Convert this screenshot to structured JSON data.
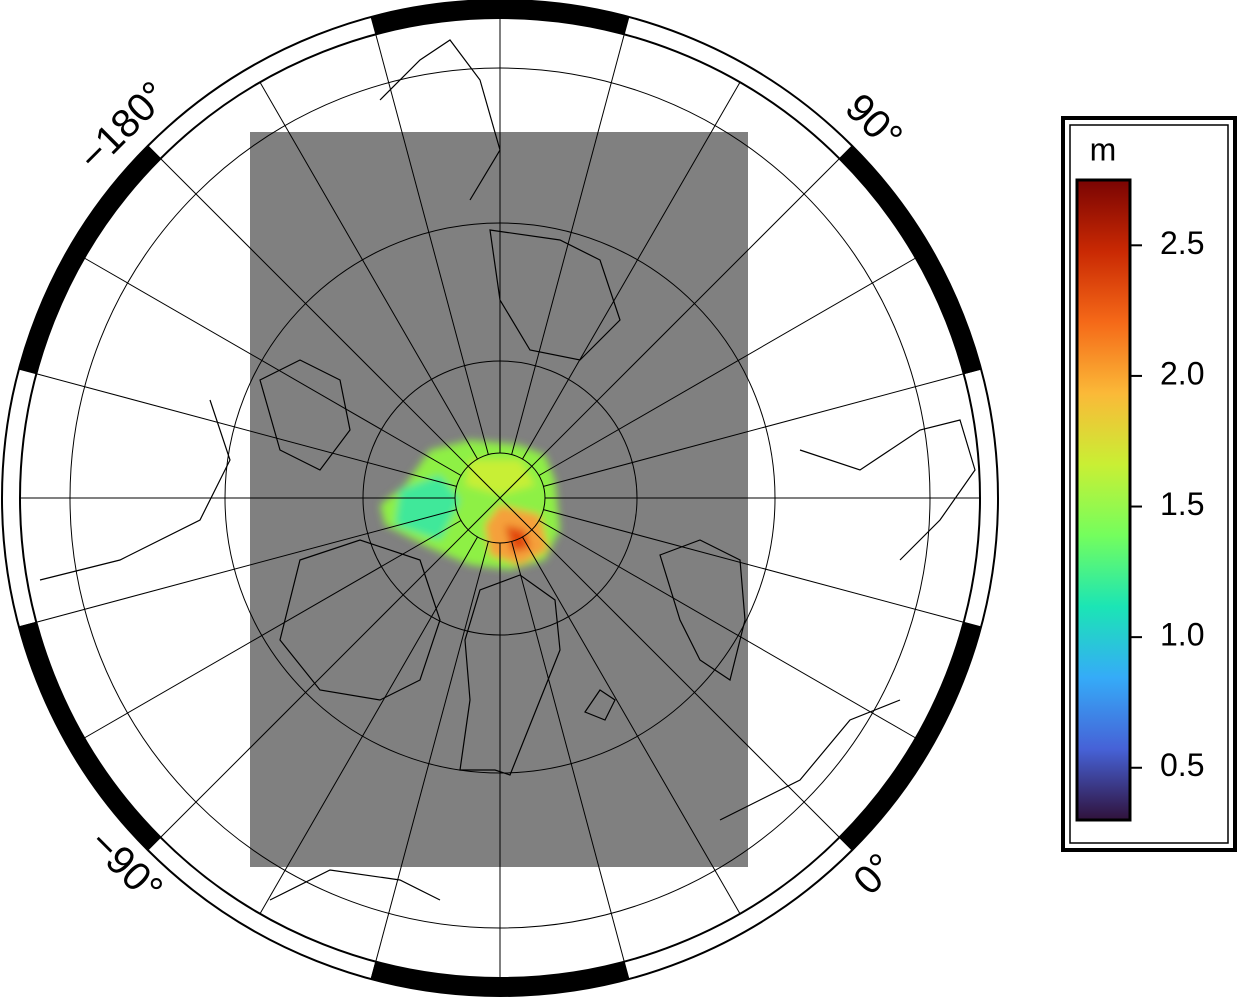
{
  "map": {
    "lon_labels": [
      "−180°",
      "90°",
      "−90°",
      "0°"
    ]
  },
  "colorbar": {
    "label": "m",
    "lim": [
      0.3,
      2.75
    ],
    "ticks": [
      0.5,
      {
        "value": 1,
        "label": "1.0"
      },
      1.5,
      {
        "value": 2,
        "label": "2.0"
      },
      2.5
    ],
    "colors": [
      "#30123b",
      "#4662d7",
      "#35abf8",
      "#1be5b5",
      "#74fe5d",
      "#c9ef34",
      "#fbb938",
      "#f56918",
      "#c92903",
      "#7a0403"
    ]
  }
}
